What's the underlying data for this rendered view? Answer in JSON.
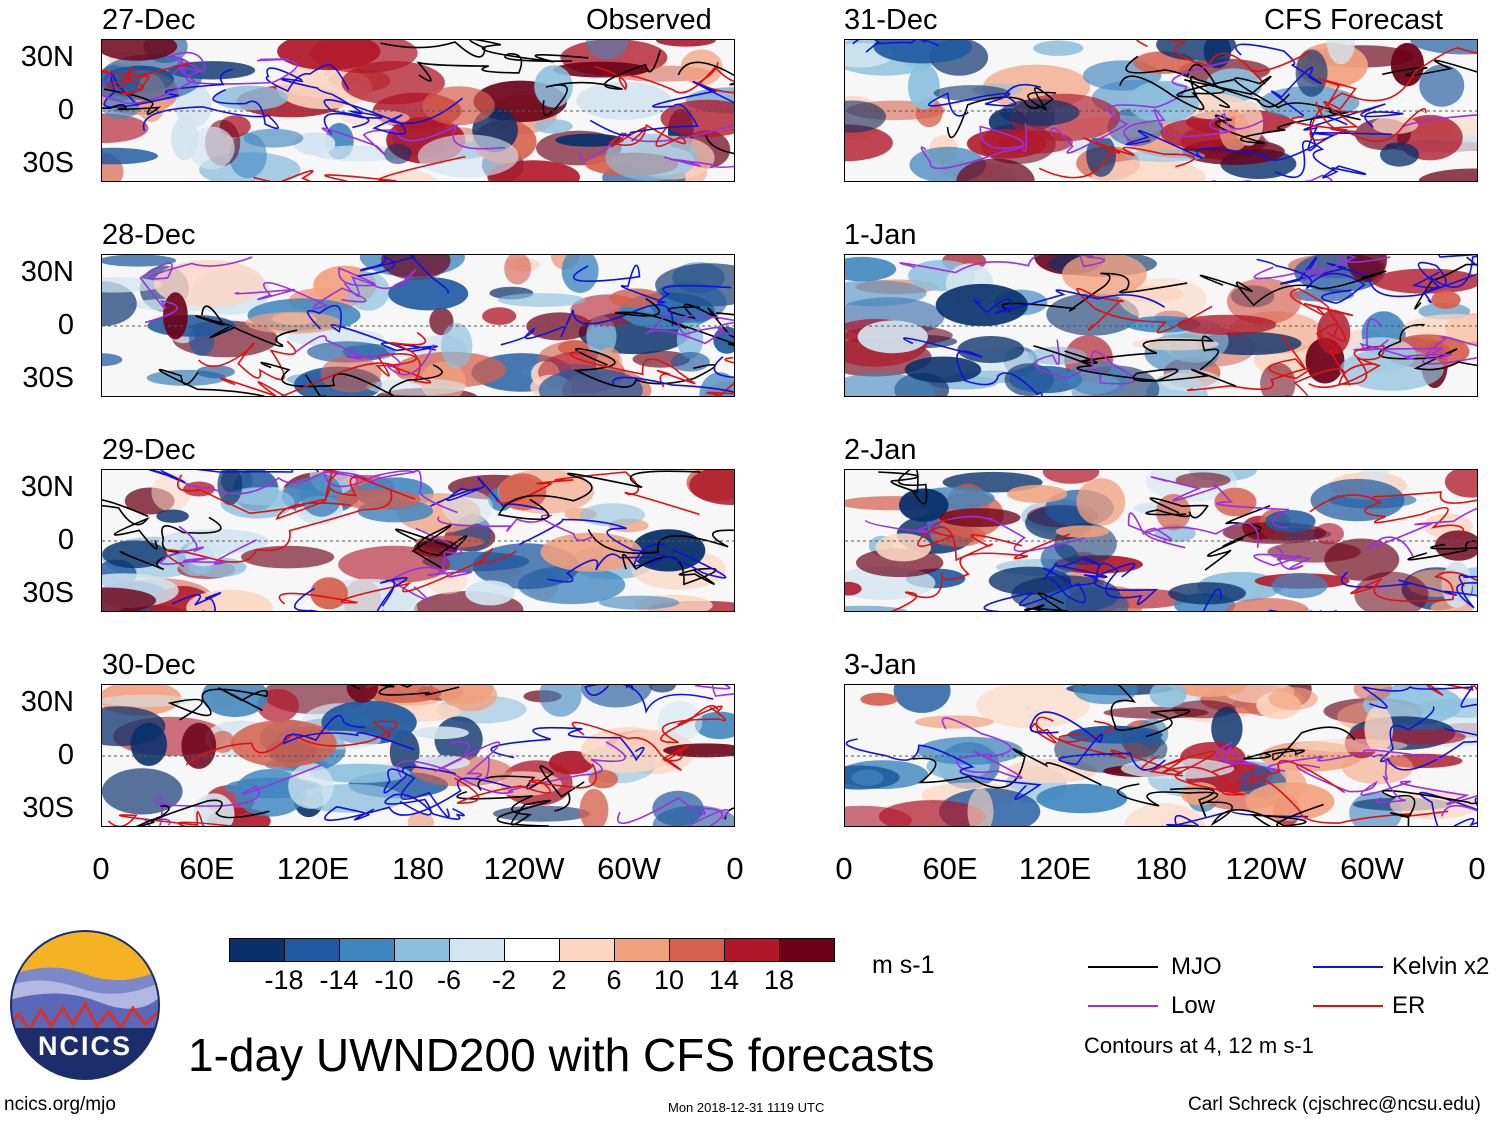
{
  "columns": [
    {
      "header": "Observed",
      "panels": [
        "27-Dec",
        "28-Dec",
        "29-Dec",
        "30-Dec"
      ]
    },
    {
      "header": "CFS Forecast",
      "panels": [
        "31-Dec",
        "1-Jan",
        "2-Jan",
        "3-Jan"
      ]
    }
  ],
  "y_axis_labels": [
    "30N",
    "0",
    "30S"
  ],
  "x_axis_labels": [
    "0",
    "60E",
    "120E",
    "180",
    "120W",
    "60W",
    "0"
  ],
  "colorbar": {
    "labels": [
      "-18",
      "-14",
      "-10",
      "-6",
      "-2",
      "2",
      "6",
      "10",
      "14",
      "18"
    ],
    "colors": [
      "#08306b",
      "#1f5aa0",
      "#3f86bf",
      "#8cbfdd",
      "#d3e5f0",
      "#ffffff",
      "#fcd6c2",
      "#f2a17e",
      "#d6604d",
      "#b0182a",
      "#6b0017"
    ],
    "units": "m s-1"
  },
  "legend": {
    "items": [
      {
        "label": "MJO",
        "color": "#000000"
      },
      {
        "label": "Kelvin x2",
        "color": "#1010e0"
      },
      {
        "label": "Low",
        "color": "#9b30e0"
      },
      {
        "label": "ER",
        "color": "#e01010"
      }
    ],
    "note": "Contours at 4, 12 m s-1"
  },
  "logo": {
    "text": "NCICS",
    "url": "ncics.org/mjo"
  },
  "main_title": "1-day UWND200 with CFS forecasts",
  "timestamp": "Mon 2018-12-31 1119 UTC",
  "credit": "Carl Schreck (cjschrec@ncsu.edu)"
}
